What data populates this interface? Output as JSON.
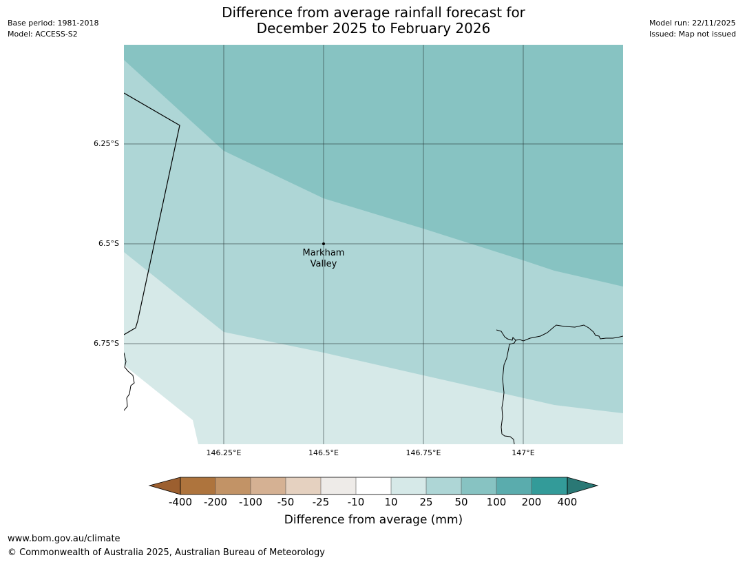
{
  "header": {
    "title_line1": "Difference from average rainfall forecast for",
    "title_line2": "December 2025 to February 2026",
    "base_period": "Base period: 1981-2018",
    "model": "Model: ACCESS-S2",
    "model_run": "Model run: 22/11/2025",
    "issued": "Issued: Map not issued"
  },
  "map": {
    "lat_labels": [
      "6.25°S",
      "6.5°S",
      "6.75°S"
    ],
    "lon_labels": [
      "146.25°E",
      "146.5°E",
      "146.75°E",
      "147°E"
    ],
    "place": {
      "name_line1": "Markham",
      "name_line2": "Valley",
      "lat": -6.5,
      "lon": 146.5
    },
    "category_colors": {
      "10 to 25": "#d6e9e8",
      "25 to 50": "#aed6d6",
      "50 to 100": "#87c3c2"
    }
  },
  "colorbar": {
    "title": "Difference from average (mm)",
    "ticks": [
      "-400",
      "-200",
      "-100",
      "-50",
      "-25",
      "-10",
      "10",
      "25",
      "50",
      "100",
      "200",
      "400"
    ],
    "colors": [
      "#9c5f2f",
      "#ae743d",
      "#c29366",
      "#d5b193",
      "#e5d1c0",
      "#eeebe8",
      "#ffffff",
      "#d6e9e8",
      "#aed6d6",
      "#87c3c2",
      "#5aacad",
      "#339b99",
      "#2a7875"
    ]
  },
  "footer": {
    "url": "www.bom.gov.au/climate",
    "copyright": "© Commonwealth of Australia 2025, Australian Bureau of Meteorology"
  }
}
